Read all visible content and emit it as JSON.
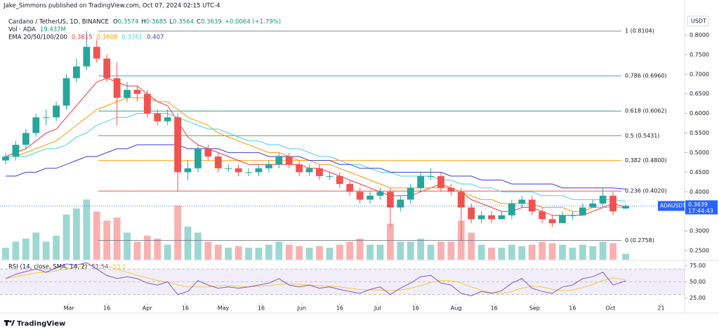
{
  "header": {
    "publisher": "Jake_Simmons published on TradingView.com, Oct 07, 2024 02:15 UTC-4",
    "symbol": "Cardano / TetherUS, 1D, BINANCE",
    "ohlc_letters": [
      "O",
      "H",
      "L",
      "C"
    ],
    "change": "+0.0064 (+1.79%)",
    "volume_title": "Vol · ADA",
    "volume_value": "19.437M",
    "ema_title": "EMA 20/50/100/200",
    "rsi_title": "RSI (14, close, SMA, 14, 2)",
    "currency": "USDT",
    "symbol_tag": "ADAUSDT",
    "countdown": "17:44:43",
    "brand": "TradingView"
  },
  "chart_data": {
    "type": "candlestick",
    "x": [
      "02-05",
      "02-09",
      "02-13",
      "02-17",
      "02-21",
      "02-25",
      "02-29",
      "03-04",
      "03-08",
      "03-12",
      "03-16",
      "03-20",
      "03-24",
      "03-28",
      "04-01",
      "04-05",
      "04-09",
      "04-13",
      "04-17",
      "04-21",
      "04-25",
      "04-29",
      "05-03",
      "05-07",
      "05-11",
      "05-15",
      "05-19",
      "05-23",
      "05-27",
      "05-31",
      "06-04",
      "06-08",
      "06-12",
      "06-16",
      "06-20",
      "06-24",
      "06-28",
      "07-02",
      "07-06",
      "07-10",
      "07-14",
      "07-18",
      "07-22",
      "07-26",
      "07-30",
      "08-03",
      "08-07",
      "08-11",
      "08-15",
      "08-19",
      "08-23",
      "08-27",
      "08-31",
      "09-04",
      "09-08",
      "09-12",
      "09-16",
      "09-20",
      "09-24",
      "09-28",
      "10-02",
      "10-07"
    ],
    "open": [
      0.48,
      0.49,
      0.52,
      0.55,
      0.59,
      0.59,
      0.62,
      0.69,
      0.72,
      0.77,
      0.74,
      0.69,
      0.64,
      0.66,
      0.65,
      0.6,
      0.58,
      0.59,
      0.45,
      0.46,
      0.51,
      0.49,
      0.46,
      0.46,
      0.45,
      0.45,
      0.46,
      0.47,
      0.49,
      0.47,
      0.45,
      0.46,
      0.44,
      0.44,
      0.42,
      0.4,
      0.38,
      0.39,
      0.4,
      0.36,
      0.38,
      0.41,
      0.44,
      0.44,
      0.41,
      0.4,
      0.36,
      0.33,
      0.34,
      0.33,
      0.34,
      0.37,
      0.38,
      0.35,
      0.33,
      0.32,
      0.34,
      0.34,
      0.36,
      0.37,
      0.39,
      0.3574
    ],
    "high": [
      0.5,
      0.53,
      0.56,
      0.6,
      0.61,
      0.63,
      0.7,
      0.74,
      0.81,
      0.79,
      0.75,
      0.73,
      0.68,
      0.67,
      0.66,
      0.61,
      0.61,
      0.6,
      0.48,
      0.52,
      0.52,
      0.5,
      0.47,
      0.47,
      0.46,
      0.47,
      0.48,
      0.5,
      0.5,
      0.48,
      0.47,
      0.47,
      0.45,
      0.45,
      0.43,
      0.41,
      0.4,
      0.41,
      0.41,
      0.39,
      0.42,
      0.45,
      0.46,
      0.45,
      0.42,
      0.41,
      0.37,
      0.35,
      0.35,
      0.35,
      0.38,
      0.39,
      0.39,
      0.36,
      0.34,
      0.35,
      0.35,
      0.37,
      0.38,
      0.41,
      0.4,
      0.3685
    ],
    "low": [
      0.47,
      0.48,
      0.51,
      0.54,
      0.57,
      0.58,
      0.61,
      0.68,
      0.71,
      0.73,
      0.68,
      0.57,
      0.63,
      0.63,
      0.59,
      0.57,
      0.57,
      0.4,
      0.43,
      0.45,
      0.48,
      0.45,
      0.45,
      0.44,
      0.44,
      0.44,
      0.45,
      0.46,
      0.46,
      0.44,
      0.44,
      0.43,
      0.43,
      0.41,
      0.39,
      0.37,
      0.37,
      0.38,
      0.31,
      0.35,
      0.37,
      0.4,
      0.43,
      0.4,
      0.39,
      0.2758,
      0.32,
      0.32,
      0.32,
      0.33,
      0.33,
      0.36,
      0.34,
      0.32,
      0.31,
      0.32,
      0.33,
      0.34,
      0.36,
      0.36,
      0.34,
      0.3564
    ],
    "close": [
      0.49,
      0.52,
      0.55,
      0.59,
      0.59,
      0.62,
      0.69,
      0.72,
      0.77,
      0.74,
      0.69,
      0.64,
      0.66,
      0.65,
      0.6,
      0.58,
      0.59,
      0.45,
      0.46,
      0.51,
      0.49,
      0.46,
      0.46,
      0.45,
      0.45,
      0.46,
      0.47,
      0.49,
      0.47,
      0.45,
      0.46,
      0.44,
      0.44,
      0.42,
      0.4,
      0.38,
      0.39,
      0.4,
      0.36,
      0.38,
      0.41,
      0.44,
      0.44,
      0.41,
      0.4,
      0.36,
      0.33,
      0.34,
      0.33,
      0.34,
      0.37,
      0.38,
      0.35,
      0.33,
      0.32,
      0.34,
      0.34,
      0.36,
      0.37,
      0.39,
      0.35,
      0.3639
    ],
    "volume": [
      40,
      60,
      70,
      90,
      60,
      80,
      150,
      170,
      200,
      160,
      130,
      140,
      90,
      60,
      80,
      70,
      50,
      180,
      110,
      90,
      60,
      50,
      40,
      45,
      40,
      40,
      50,
      60,
      50,
      45,
      40,
      45,
      40,
      50,
      60,
      70,
      50,
      50,
      120,
      60,
      60,
      70,
      50,
      60,
      60,
      130,
      90,
      50,
      40,
      40,
      50,
      45,
      50,
      60,
      55,
      50,
      40,
      50,
      45,
      60,
      55,
      19.437
    ],
    "up_color": "#26a69a",
    "down_color": "#ef5350",
    "ema": [
      {
        "color": "#f23645",
        "values": [
          0.49,
          0.5,
          0.51,
          0.53,
          0.55,
          0.56,
          0.59,
          0.62,
          0.65,
          0.68,
          0.69,
          0.68,
          0.67,
          0.67,
          0.65,
          0.63,
          0.62,
          0.58,
          0.54,
          0.52,
          0.51,
          0.5,
          0.49,
          0.48,
          0.47,
          0.47,
          0.47,
          0.47,
          0.47,
          0.47,
          0.46,
          0.46,
          0.45,
          0.44,
          0.43,
          0.42,
          0.41,
          0.4,
          0.39,
          0.39,
          0.39,
          0.4,
          0.41,
          0.42,
          0.41,
          0.4,
          0.38,
          0.37,
          0.36,
          0.35,
          0.35,
          0.36,
          0.36,
          0.35,
          0.34,
          0.34,
          0.34,
          0.34,
          0.35,
          0.36,
          0.37,
          0.3615
        ]
      },
      {
        "color": "#ff9800",
        "values": [
          0.49,
          0.49,
          0.5,
          0.51,
          0.52,
          0.53,
          0.55,
          0.57,
          0.59,
          0.61,
          0.62,
          0.63,
          0.64,
          0.64,
          0.64,
          0.63,
          0.63,
          0.61,
          0.59,
          0.58,
          0.57,
          0.55,
          0.54,
          0.53,
          0.52,
          0.51,
          0.5,
          0.5,
          0.49,
          0.48,
          0.48,
          0.47,
          0.47,
          0.46,
          0.45,
          0.44,
          0.43,
          0.42,
          0.41,
          0.41,
          0.41,
          0.41,
          0.41,
          0.41,
          0.41,
          0.4,
          0.39,
          0.38,
          0.38,
          0.37,
          0.37,
          0.37,
          0.37,
          0.36,
          0.36,
          0.36,
          0.35,
          0.35,
          0.36,
          0.36,
          0.36,
          0.3608
        ]
      },
      {
        "color": "#4dd0e1",
        "values": [
          0.49,
          0.49,
          0.49,
          0.5,
          0.51,
          0.51,
          0.52,
          0.54,
          0.55,
          0.57,
          0.58,
          0.59,
          0.59,
          0.6,
          0.6,
          0.6,
          0.6,
          0.59,
          0.58,
          0.57,
          0.56,
          0.56,
          0.55,
          0.54,
          0.53,
          0.53,
          0.52,
          0.52,
          0.51,
          0.51,
          0.5,
          0.49,
          0.49,
          0.48,
          0.47,
          0.47,
          0.46,
          0.45,
          0.45,
          0.44,
          0.44,
          0.44,
          0.44,
          0.43,
          0.43,
          0.42,
          0.42,
          0.41,
          0.41,
          0.4,
          0.4,
          0.4,
          0.4,
          0.39,
          0.39,
          0.39,
          0.38,
          0.38,
          0.38,
          0.38,
          0.38,
          0.3761
        ]
      },
      {
        "color": "#3b3bd1",
        "values": [
          0.44,
          0.44,
          0.45,
          0.45,
          0.46,
          0.46,
          0.47,
          0.48,
          0.49,
          0.49,
          0.5,
          0.51,
          0.51,
          0.52,
          0.52,
          0.52,
          0.52,
          0.52,
          0.51,
          0.51,
          0.51,
          0.51,
          0.5,
          0.5,
          0.5,
          0.5,
          0.49,
          0.49,
          0.49,
          0.49,
          0.48,
          0.48,
          0.48,
          0.47,
          0.47,
          0.46,
          0.46,
          0.46,
          0.45,
          0.45,
          0.45,
          0.45,
          0.45,
          0.45,
          0.44,
          0.44,
          0.44,
          0.43,
          0.43,
          0.43,
          0.42,
          0.42,
          0.42,
          0.42,
          0.42,
          0.41,
          0.41,
          0.41,
          0.41,
          0.41,
          0.41,
          0.407
        ]
      }
    ],
    "fib_levels": [
      {
        "label": "1 (0.8104)",
        "value": 0.8104,
        "color": "#787b86"
      },
      {
        "label": "0.786 (0.6960)",
        "value": 0.696,
        "color": "#2196a3"
      },
      {
        "label": "0.618 (0.6062)",
        "value": 0.6062,
        "color": "#089981"
      },
      {
        "label": "0.5 (0.5431)",
        "value": 0.5431,
        "color": "#4caf50"
      },
      {
        "label": "0.382 (0.4800)",
        "value": 0.48,
        "color": "#ff9800"
      },
      {
        "label": "0.236 (0.4020)",
        "value": 0.402,
        "color": "#f23645"
      },
      {
        "label": "0 (0.2758)",
        "value": 0.2758,
        "color": "#787b86"
      }
    ],
    "xlim": [
      "02-05",
      "10-30"
    ],
    "xticks": [
      {
        "value": "03-01",
        "label": "Mar"
      },
      {
        "value": "03-16",
        "label": "16"
      },
      {
        "value": "04-01",
        "label": "Apr"
      },
      {
        "value": "04-16",
        "label": "16"
      },
      {
        "value": "05-01",
        "label": "May"
      },
      {
        "value": "05-16",
        "label": "16"
      },
      {
        "value": "06-01",
        "label": "Jun"
      },
      {
        "value": "06-16",
        "label": "16"
      },
      {
        "value": "07-01",
        "label": "Jul"
      },
      {
        "value": "07-16",
        "label": "16"
      },
      {
        "value": "08-01",
        "label": "Aug"
      },
      {
        "value": "08-16",
        "label": "16"
      },
      {
        "value": "09-01",
        "label": "Sep"
      },
      {
        "value": "09-16",
        "label": "16"
      },
      {
        "value": "10-01",
        "label": "Oct"
      },
      {
        "value": "10-21",
        "label": "21"
      }
    ],
    "ylim": [
      0.2267,
      0.8537
    ],
    "yticks": [
      {
        "value": 0.8,
        "label": "0.8000"
      },
      {
        "value": 0.75,
        "label": "0.7500"
      },
      {
        "value": 0.7,
        "label": "0.7000"
      },
      {
        "value": 0.65,
        "label": "0.6500"
      },
      {
        "value": 0.6,
        "label": "0.6000"
      },
      {
        "value": 0.55,
        "label": "0.5500"
      },
      {
        "value": 0.5,
        "label": "0.5000"
      },
      {
        "value": 0.45,
        "label": "0.4500"
      },
      {
        "value": 0.4,
        "label": "0.4000"
      },
      {
        "value": 0.35,
        "label": "0.3500"
      },
      {
        "value": 0.3,
        "label": "0.3000"
      },
      {
        "value": 0.25,
        "label": "0.2500"
      }
    ],
    "volume_ylim": [
      0,
      210
    ],
    "rsi": {
      "color": "#7e57c2",
      "values": [
        55,
        62,
        66,
        70,
        65,
        72,
        78,
        76,
        80,
        70,
        60,
        55,
        58,
        55,
        48,
        45,
        50,
        30,
        35,
        52,
        45,
        40,
        42,
        40,
        42,
        45,
        48,
        55,
        45,
        42,
        45,
        40,
        42,
        38,
        35,
        32,
        38,
        42,
        30,
        40,
        48,
        58,
        60,
        48,
        45,
        32,
        28,
        35,
        32,
        36,
        48,
        55,
        40,
        35,
        32,
        42,
        45,
        55,
        58,
        65,
        45,
        51.54
      ]
    },
    "rsi_sma": {
      "color": "#f0c93c",
      "values": [
        55,
        58,
        61,
        64,
        65,
        67,
        70,
        73,
        76,
        76,
        74,
        70,
        65,
        60,
        56,
        52,
        50,
        45,
        42,
        42,
        42,
        44,
        44,
        43,
        42,
        43,
        44,
        46,
        47,
        46,
        45,
        44,
        43,
        42,
        40,
        38,
        37,
        37,
        36,
        37,
        40,
        44,
        49,
        52,
        52,
        48,
        42,
        37,
        33,
        32,
        35,
        40,
        43,
        42,
        38,
        36,
        37,
        41,
        46,
        52,
        56,
        53.1
      ]
    },
    "rsi_levels": [
      70,
      50,
      30
    ],
    "rsi_ylim": [
      16.5,
      82.4
    ],
    "rsi_yticks": [
      {
        "value": 75,
        "label": "75.00"
      },
      {
        "value": 50,
        "label": "50.00"
      },
      {
        "value": 25,
        "label": "25.00"
      }
    ]
  }
}
